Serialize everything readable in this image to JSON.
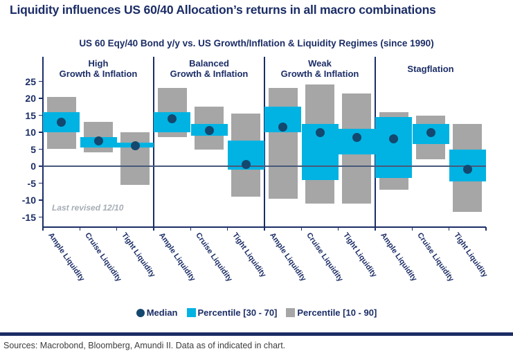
{
  "title": "Liquidity influences US 60/40 Allocation’s returns in all macro combinations",
  "chart_title": "US 60 Eqy/40 Bond y/y vs. US Growth/Inflation & Liquidity Regimes (since 1990)",
  "annotation": "Last revised 12/10",
  "footer": {
    "sources": "Sources: Macrobond, Bloomberg, Amundi II. Data as of indicated in chart."
  },
  "colors": {
    "navy_text": "#1b2d66",
    "percentile_30_70": "#00b3e3",
    "percentile_10_90": "#a6a6a6",
    "median_dot": "#14486e",
    "zero_line": "#47597a"
  },
  "legend": [
    {
      "glyph": "dot",
      "label": "Median",
      "color": "#14486e"
    },
    {
      "glyph": "square",
      "label": "Percentile [30 - 70]",
      "color": "#00b3e3"
    },
    {
      "glyph": "square",
      "label": "Percentile [10 - 90]",
      "color": "#a6a6a6"
    }
  ],
  "chart_data": {
    "type": "box",
    "description": "Percentile ranges (10-90 gray, 30-70 cyan) and median of US 60/40 y/y returns (%) by macro regime and liquidity regime",
    "ylim": [
      -18,
      32
    ],
    "yticks": [
      25,
      20,
      15,
      10,
      5,
      0,
      -5,
      -10,
      -15
    ],
    "grid": false,
    "legend_position": "bottom",
    "categories_x": [
      "Ample Liquidity",
      "Cruise Liquidity",
      "Tight Liquidity"
    ],
    "groups": [
      {
        "label_lines": [
          "High",
          "Growth & Inflation"
        ],
        "bars": [
          {
            "liquidity": "Ample Liquidity",
            "p10": 5,
            "p30": 10,
            "median": 13,
            "p70": 16,
            "p90": 20.5
          },
          {
            "liquidity": "Cruise Liquidity",
            "p10": 4,
            "p30": 5.5,
            "median": 7.5,
            "p70": 8.5,
            "p90": 13
          },
          {
            "liquidity": "Tight Liquidity",
            "p10": -5.5,
            "p30": 5.5,
            "median": 6,
            "p70": 7,
            "p90": 10
          }
        ]
      },
      {
        "label_lines": [
          "Balanced",
          "Growth & Inflation"
        ],
        "bars": [
          {
            "liquidity": "Ample Liquidity",
            "p10": 8.5,
            "p30": 10,
            "median": 14,
            "p70": 16,
            "p90": 23
          },
          {
            "liquidity": "Cruise Liquidity",
            "p10": 5,
            "p30": 9,
            "median": 10.5,
            "p70": 12.5,
            "p90": 17.5
          },
          {
            "liquidity": "Tight Liquidity",
            "p10": -9,
            "p30": -1,
            "median": 0.5,
            "p70": 7.5,
            "p90": 15.5
          }
        ]
      },
      {
        "label_lines": [
          "Weak",
          "Growth & Inflation"
        ],
        "bars": [
          {
            "liquidity": "Ample Liquidity",
            "p10": -9.5,
            "p30": 10,
            "median": 11.5,
            "p70": 17.5,
            "p90": 23
          },
          {
            "liquidity": "Cruise Liquidity",
            "p10": -11,
            "p30": -4,
            "median": 10,
            "p70": 12.5,
            "p90": 24
          },
          {
            "liquidity": "Tight Liquidity",
            "p10": -11,
            "p30": 3.5,
            "median": 8.5,
            "p70": 11,
            "p90": 21.5
          }
        ]
      },
      {
        "label_lines": [
          "Stagflation"
        ],
        "bars": [
          {
            "liquidity": "Ample Liquidity",
            "p10": -7,
            "p30": -3.5,
            "median": 8,
            "p70": 14.5,
            "p90": 16
          },
          {
            "liquidity": "Cruise Liquidity",
            "p10": 2,
            "p30": 6.5,
            "median": 10,
            "p70": 12.5,
            "p90": 15
          },
          {
            "liquidity": "Tight Liquidity",
            "p10": -13.5,
            "p30": -4.5,
            "median": -1,
            "p70": 5,
            "p90": 12.5
          }
        ]
      }
    ]
  }
}
